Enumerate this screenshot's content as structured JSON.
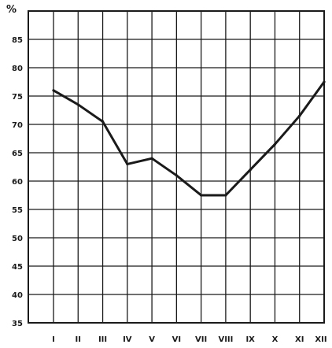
{
  "chart_data": {
    "type": "line",
    "ylabel": "%",
    "categories": [
      "I",
      "II",
      "III",
      "IV",
      "V",
      "VI",
      "VII",
      "VIII",
      "IX",
      "X",
      "XI",
      "XII"
    ],
    "x_tick_labels": [
      "I",
      "II",
      "III",
      "IV",
      "V",
      "VI",
      "VII",
      "VIII",
      "IX",
      "X",
      "XI",
      "XII"
    ],
    "y_tick_labels": [
      "35",
      "40",
      "45",
      "50",
      "55",
      "60",
      "65",
      "70",
      "75",
      "80",
      "85"
    ],
    "ylim": [
      35,
      90
    ],
    "grid": true,
    "series": [
      {
        "values": [
          76,
          73.5,
          70.5,
          63,
          64,
          61,
          57.5,
          57.5,
          62,
          66.5,
          71.5,
          77.5
        ]
      }
    ]
  }
}
